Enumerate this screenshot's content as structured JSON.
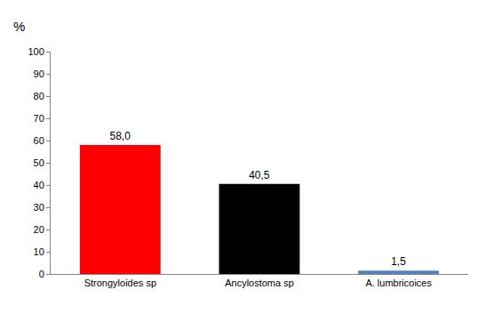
{
  "chart_data": {
    "type": "bar",
    "y_label": "%",
    "categories": [
      "Strongyloides sp",
      "Ancylostoma sp",
      "A. lumbricoices"
    ],
    "values": [
      58.0,
      40.5,
      1.5
    ],
    "value_labels": [
      "58,0",
      "40,5",
      "1,5"
    ],
    "colors": [
      "#ff0000",
      "#000000",
      "#4f81bd"
    ],
    "ylim": [
      0,
      100
    ],
    "yticks": [
      0,
      10,
      20,
      30,
      40,
      50,
      60,
      70,
      80,
      90,
      100
    ],
    "grid": false,
    "data_labels": true
  }
}
